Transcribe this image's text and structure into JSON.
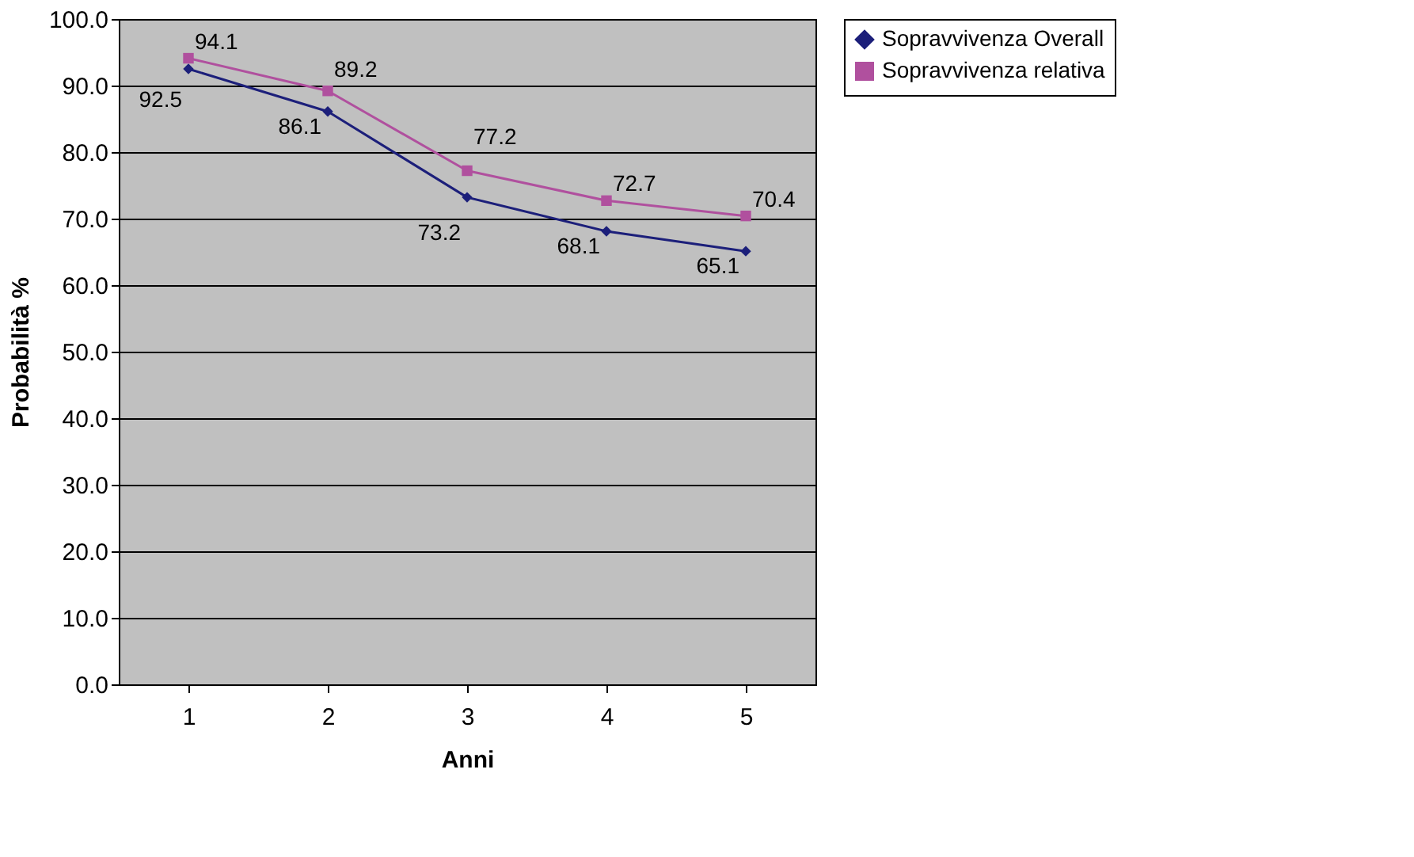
{
  "chart_data": {
    "type": "line",
    "xlabel": "Anni",
    "ylabel": "Probabilità %",
    "categories": [
      "1",
      "2",
      "3",
      "4",
      "5"
    ],
    "series": [
      {
        "name": "Sopravvivenza Overall",
        "color": "#1c1f7a",
        "marker": "diamond",
        "values": [
          92.5,
          86.1,
          73.2,
          68.1,
          65.1
        ]
      },
      {
        "name": "Sopravvivenza relativa",
        "color": "#b0509e",
        "marker": "square",
        "values": [
          94.1,
          89.2,
          77.2,
          72.7,
          70.4
        ]
      }
    ],
    "ylim": [
      0,
      100
    ],
    "yticks": [
      {
        "value": 0,
        "label": "0.0"
      },
      {
        "value": 10,
        "label": "10.0"
      },
      {
        "value": 20,
        "label": "20.0"
      },
      {
        "value": 30,
        "label": "30.0"
      },
      {
        "value": 40,
        "label": "40.0"
      },
      {
        "value": 50,
        "label": "50.0"
      },
      {
        "value": 60,
        "label": "60.0"
      },
      {
        "value": 70,
        "label": "70.0"
      },
      {
        "value": 80,
        "label": "80.0"
      },
      {
        "value": 90,
        "label": "90.0"
      },
      {
        "value": 100,
        "label": "100.0"
      }
    ],
    "grid": "y",
    "legend": "right",
    "data_labels": true,
    "line_style": "solid"
  }
}
